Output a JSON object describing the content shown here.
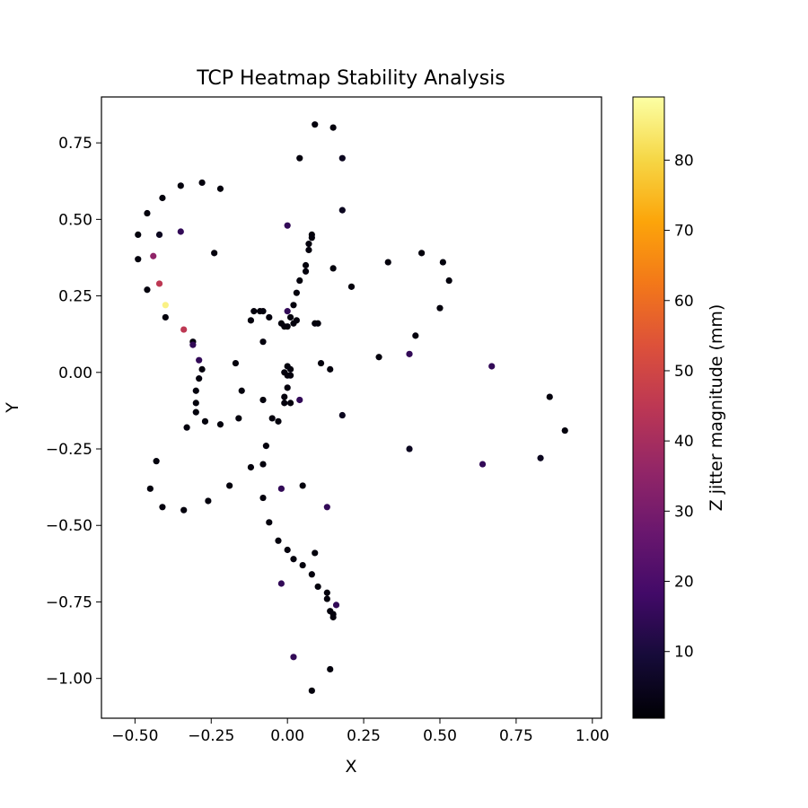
{
  "chart_data": {
    "type": "scatter",
    "title": "TCP Heatmap Stability Analysis",
    "xlabel": "X",
    "ylabel": "Y",
    "xlim": [
      -0.61,
      1.03
    ],
    "ylim": [
      -1.13,
      0.9
    ],
    "xticks": [
      -0.5,
      -0.25,
      0.0,
      0.25,
      0.5,
      0.75,
      1.0
    ],
    "xtick_labels": [
      "−0.50",
      "−0.25",
      "0.00",
      "0.25",
      "0.50",
      "0.75",
      "1.00"
    ],
    "yticks": [
      0.75,
      0.5,
      0.25,
      0.0,
      -0.25,
      -0.5,
      -0.75,
      -1.0
    ],
    "ytick_labels": [
      "0.75",
      "0.50",
      "0.25",
      "0.00",
      "−0.25",
      "−0.50",
      "−0.75",
      "−1.00"
    ],
    "grid": false,
    "colormap": "inferno",
    "colorbar": {
      "label": "Z jitter magnitude (mm)",
      "range": [
        0.5,
        89
      ],
      "ticks": [
        10,
        20,
        30,
        40,
        50,
        60,
        70,
        80
      ],
      "tick_labels": [
        "10",
        "20",
        "30",
        "40",
        "50",
        "60",
        "70",
        "80"
      ]
    },
    "points": [
      {
        "x": 0.09,
        "y": 0.81,
        "z": 2
      },
      {
        "x": 0.15,
        "y": 0.8,
        "z": 2
      },
      {
        "x": 0.04,
        "y": 0.7,
        "z": 2
      },
      {
        "x": 0.18,
        "y": 0.7,
        "z": 5
      },
      {
        "x": 0.18,
        "y": 0.53,
        "z": 5
      },
      {
        "x": -0.28,
        "y": 0.62,
        "z": 2
      },
      {
        "x": -0.35,
        "y": 0.61,
        "z": 2
      },
      {
        "x": -0.22,
        "y": 0.6,
        "z": 2
      },
      {
        "x": -0.41,
        "y": 0.57,
        "z": 2
      },
      {
        "x": -0.46,
        "y": 0.52,
        "z": 2
      },
      {
        "x": -0.49,
        "y": 0.45,
        "z": 2
      },
      {
        "x": -0.42,
        "y": 0.45,
        "z": 5
      },
      {
        "x": -0.35,
        "y": 0.46,
        "z": 15
      },
      {
        "x": 0.0,
        "y": 0.48,
        "z": 15
      },
      {
        "x": 0.08,
        "y": 0.45,
        "z": 2
      },
      {
        "x": 0.08,
        "y": 0.44,
        "z": 2
      },
      {
        "x": 0.07,
        "y": 0.42,
        "z": 2
      },
      {
        "x": 0.07,
        "y": 0.4,
        "z": 2
      },
      {
        "x": -0.24,
        "y": 0.39,
        "z": 2
      },
      {
        "x": -0.44,
        "y": 0.38,
        "z": 35
      },
      {
        "x": -0.49,
        "y": 0.37,
        "z": 2
      },
      {
        "x": 0.06,
        "y": 0.35,
        "z": 2
      },
      {
        "x": 0.06,
        "y": 0.33,
        "z": 2
      },
      {
        "x": 0.15,
        "y": 0.34,
        "z": 2
      },
      {
        "x": 0.33,
        "y": 0.36,
        "z": 2
      },
      {
        "x": 0.44,
        "y": 0.39,
        "z": 2
      },
      {
        "x": 0.51,
        "y": 0.36,
        "z": 2
      },
      {
        "x": 0.53,
        "y": 0.3,
        "z": 2
      },
      {
        "x": 0.04,
        "y": 0.3,
        "z": 2
      },
      {
        "x": 0.21,
        "y": 0.28,
        "z": 2
      },
      {
        "x": -0.46,
        "y": 0.27,
        "z": 2
      },
      {
        "x": -0.42,
        "y": 0.29,
        "z": 45
      },
      {
        "x": 0.03,
        "y": 0.26,
        "z": 2
      },
      {
        "x": 0.02,
        "y": 0.22,
        "z": 2
      },
      {
        "x": 0.5,
        "y": 0.21,
        "z": 2
      },
      {
        "x": -0.4,
        "y": 0.22,
        "z": 86
      },
      {
        "x": -0.4,
        "y": 0.18,
        "z": 2
      },
      {
        "x": -0.11,
        "y": 0.2,
        "z": 2
      },
      {
        "x": -0.09,
        "y": 0.2,
        "z": 2
      },
      {
        "x": -0.08,
        "y": 0.2,
        "z": 2
      },
      {
        "x": -0.12,
        "y": 0.17,
        "z": 2
      },
      {
        "x": -0.06,
        "y": 0.18,
        "z": 2
      },
      {
        "x": -0.02,
        "y": 0.16,
        "z": 2
      },
      {
        "x": 0.0,
        "y": 0.2,
        "z": 15
      },
      {
        "x": 0.01,
        "y": 0.18,
        "z": 2
      },
      {
        "x": 0.03,
        "y": 0.17,
        "z": 2
      },
      {
        "x": -0.01,
        "y": 0.15,
        "z": 2
      },
      {
        "x": 0.0,
        "y": 0.15,
        "z": 2
      },
      {
        "x": 0.02,
        "y": 0.16,
        "z": 2
      },
      {
        "x": 0.09,
        "y": 0.16,
        "z": 2
      },
      {
        "x": 0.1,
        "y": 0.16,
        "z": 2
      },
      {
        "x": -0.34,
        "y": 0.14,
        "z": 45
      },
      {
        "x": 0.42,
        "y": 0.12,
        "z": 2
      },
      {
        "x": -0.31,
        "y": 0.1,
        "z": 2
      },
      {
        "x": -0.31,
        "y": 0.09,
        "z": 15
      },
      {
        "x": -0.08,
        "y": 0.1,
        "z": 2
      },
      {
        "x": 0.3,
        "y": 0.05,
        "z": 2
      },
      {
        "x": 0.4,
        "y": 0.06,
        "z": 15
      },
      {
        "x": 0.67,
        "y": 0.02,
        "z": 15
      },
      {
        "x": -0.29,
        "y": 0.04,
        "z": 15
      },
      {
        "x": -0.17,
        "y": 0.03,
        "z": 2
      },
      {
        "x": 0.11,
        "y": 0.03,
        "z": 2
      },
      {
        "x": -0.28,
        "y": 0.01,
        "z": 2
      },
      {
        "x": 0.0,
        "y": 0.02,
        "z": 2
      },
      {
        "x": 0.01,
        "y": 0.01,
        "z": 2
      },
      {
        "x": 0.14,
        "y": 0.01,
        "z": 2
      },
      {
        "x": -0.01,
        "y": 0.0,
        "z": 2
      },
      {
        "x": 0.0,
        "y": -0.01,
        "z": 2
      },
      {
        "x": 0.01,
        "y": -0.01,
        "z": 2
      },
      {
        "x": -0.29,
        "y": -0.02,
        "z": 2
      },
      {
        "x": 0.0,
        "y": -0.05,
        "z": 2
      },
      {
        "x": -0.15,
        "y": -0.06,
        "z": 2
      },
      {
        "x": -0.3,
        "y": -0.06,
        "z": 2
      },
      {
        "x": -0.01,
        "y": -0.08,
        "z": 2
      },
      {
        "x": -0.3,
        "y": -0.1,
        "z": 2
      },
      {
        "x": -0.08,
        "y": -0.09,
        "z": 2
      },
      {
        "x": -0.01,
        "y": -0.1,
        "z": 2
      },
      {
        "x": 0.01,
        "y": -0.1,
        "z": 2
      },
      {
        "x": 0.04,
        "y": -0.09,
        "z": 15
      },
      {
        "x": 0.86,
        "y": -0.08,
        "z": 2
      },
      {
        "x": -0.3,
        "y": -0.13,
        "z": 2
      },
      {
        "x": -0.05,
        "y": -0.15,
        "z": 2
      },
      {
        "x": -0.03,
        "y": -0.16,
        "z": 2
      },
      {
        "x": -0.27,
        "y": -0.16,
        "z": 2
      },
      {
        "x": -0.33,
        "y": -0.18,
        "z": 2
      },
      {
        "x": -0.22,
        "y": -0.17,
        "z": 2
      },
      {
        "x": -0.16,
        "y": -0.15,
        "z": 2
      },
      {
        "x": 0.18,
        "y": -0.14,
        "z": 5
      },
      {
        "x": 0.91,
        "y": -0.19,
        "z": 2
      },
      {
        "x": -0.07,
        "y": -0.24,
        "z": 2
      },
      {
        "x": 0.4,
        "y": -0.25,
        "z": 5
      },
      {
        "x": 0.83,
        "y": -0.28,
        "z": 5
      },
      {
        "x": 0.64,
        "y": -0.3,
        "z": 15
      },
      {
        "x": -0.43,
        "y": -0.29,
        "z": 2
      },
      {
        "x": -0.08,
        "y": -0.3,
        "z": 2
      },
      {
        "x": -0.12,
        "y": -0.31,
        "z": 2
      },
      {
        "x": -0.19,
        "y": -0.37,
        "z": 2
      },
      {
        "x": -0.45,
        "y": -0.38,
        "z": 2
      },
      {
        "x": -0.02,
        "y": -0.38,
        "z": 15
      },
      {
        "x": 0.05,
        "y": -0.37,
        "z": 2
      },
      {
        "x": -0.08,
        "y": -0.41,
        "z": 2
      },
      {
        "x": -0.26,
        "y": -0.42,
        "z": 2
      },
      {
        "x": -0.41,
        "y": -0.44,
        "z": 2
      },
      {
        "x": -0.34,
        "y": -0.45,
        "z": 2
      },
      {
        "x": 0.13,
        "y": -0.44,
        "z": 15
      },
      {
        "x": -0.06,
        "y": -0.49,
        "z": 2
      },
      {
        "x": -0.03,
        "y": -0.55,
        "z": 2
      },
      {
        "x": 0.0,
        "y": -0.58,
        "z": 2
      },
      {
        "x": 0.09,
        "y": -0.59,
        "z": 2
      },
      {
        "x": 0.02,
        "y": -0.61,
        "z": 2
      },
      {
        "x": 0.05,
        "y": -0.63,
        "z": 2
      },
      {
        "x": 0.08,
        "y": -0.66,
        "z": 2
      },
      {
        "x": -0.02,
        "y": -0.69,
        "z": 15
      },
      {
        "x": 0.1,
        "y": -0.7,
        "z": 2
      },
      {
        "x": 0.13,
        "y": -0.72,
        "z": 2
      },
      {
        "x": 0.13,
        "y": -0.74,
        "z": 2
      },
      {
        "x": 0.16,
        "y": -0.76,
        "z": 15
      },
      {
        "x": 0.14,
        "y": -0.78,
        "z": 2
      },
      {
        "x": 0.15,
        "y": -0.79,
        "z": 2
      },
      {
        "x": 0.15,
        "y": -0.8,
        "z": 2
      },
      {
        "x": 0.02,
        "y": -0.93,
        "z": 15
      },
      {
        "x": 0.14,
        "y": -0.97,
        "z": 2
      },
      {
        "x": 0.08,
        "y": -1.04,
        "z": 2
      }
    ]
  }
}
